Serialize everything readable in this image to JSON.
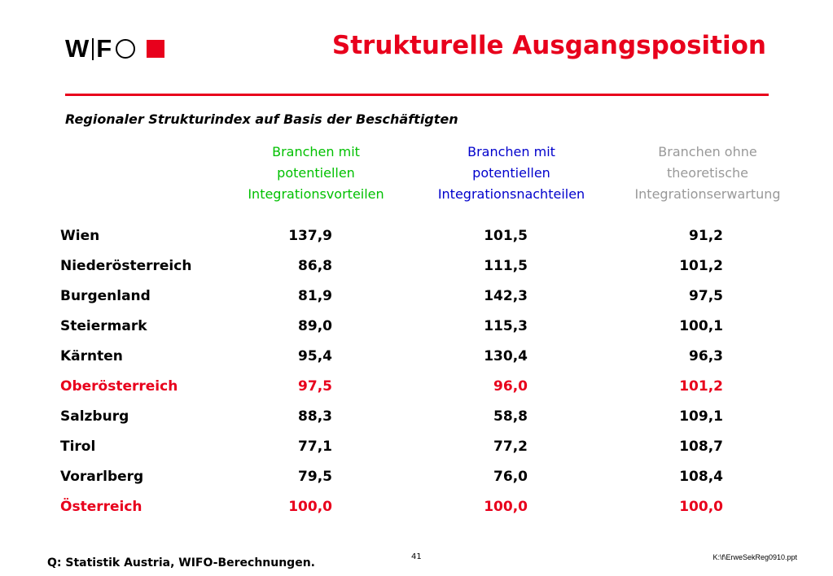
{
  "logo": {
    "text_left": "W",
    "text_mid": "F"
  },
  "title": "Strukturelle Ausgangsposition",
  "subtitle": "Regionaler Strukturindex auf Basis der Beschäftigten",
  "colors": {
    "accent": "#e8001c",
    "green": "#00c000",
    "blue": "#0000cc",
    "gray": "#999999"
  },
  "columns": [
    {
      "lines": [
        "Branchen mit",
        "potentiellen",
        "Integrationsvorteilen"
      ]
    },
    {
      "lines": [
        "Branchen mit",
        "potentiellen",
        "Integrationsnachteilen"
      ]
    },
    {
      "lines": [
        "Branchen ohne",
        "theoretische",
        "Integrationserwartung"
      ]
    }
  ],
  "rows": [
    {
      "name": "Wien",
      "v1": "137,9",
      "v2": "101,5",
      "v3": "91,2",
      "highlight": false
    },
    {
      "name": "Niederösterreich",
      "v1": "86,8",
      "v2": "111,5",
      "v3": "101,2",
      "highlight": false
    },
    {
      "name": "Burgenland",
      "v1": "81,9",
      "v2": "142,3",
      "v3": "97,5",
      "highlight": false
    },
    {
      "name": "Steiermark",
      "v1": "89,0",
      "v2": "115,3",
      "v3": "100,1",
      "highlight": false
    },
    {
      "name": "Kärnten",
      "v1": "95,4",
      "v2": "130,4",
      "v3": "96,3",
      "highlight": false
    },
    {
      "name": "Oberösterreich",
      "v1": "97,5",
      "v2": "96,0",
      "v3": "101,2",
      "highlight": true
    },
    {
      "name": "Salzburg",
      "v1": "88,3",
      "v2": "58,8",
      "v3": "109,1",
      "highlight": false
    },
    {
      "name": "Tirol",
      "v1": "77,1",
      "v2": "77,2",
      "v3": "108,7",
      "highlight": false
    },
    {
      "name": "Vorarlberg",
      "v1": "79,5",
      "v2": "76,0",
      "v3": "108,4",
      "highlight": false
    },
    {
      "name": "Österreich",
      "v1": "100,0",
      "v2": "100,0",
      "v3": "100,0",
      "highlight": true
    }
  ],
  "footer": {
    "source": "Q: Statistik Austria, WIFO-Berechnungen.",
    "page_number": "41",
    "filename": "K:\\f\\ErweSekReg0910.ppt"
  }
}
